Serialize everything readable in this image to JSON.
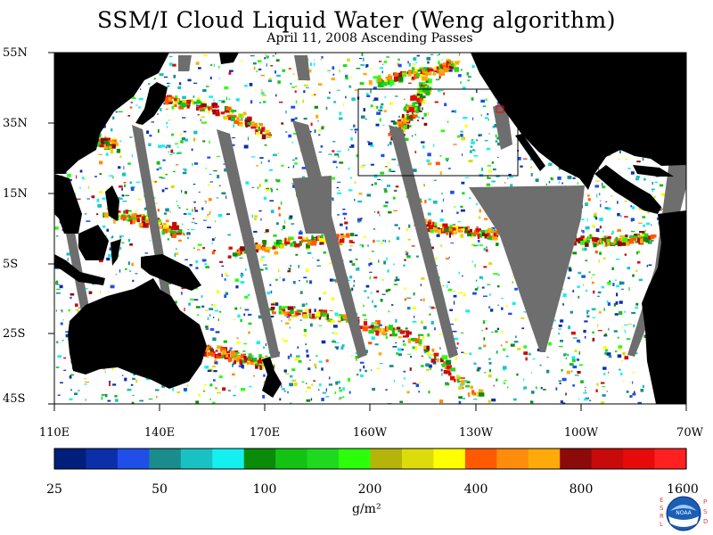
{
  "title": "SSM/I Cloud Liquid Water (Weng algorithm)",
  "subtitle": "April 11, 2008  Ascending Passes",
  "lat_labels": [
    "55N",
    "35N",
    "15N",
    "5S",
    "25S",
    "45S"
  ],
  "lon_labels": [
    "110E",
    "140E",
    "170E",
    "160W",
    "130W",
    "100W",
    "70W"
  ],
  "colorbar": {
    "colors": [
      "#001f7a",
      "#0a2fa8",
      "#1f4fe8",
      "#1a8c8c",
      "#19c2c2",
      "#14f0f0",
      "#0a8c0a",
      "#14c214",
      "#1ed91e",
      "#2cff0a",
      "#b4b40a",
      "#dcdc0a",
      "#ffff00",
      "#ff5a00",
      "#ff8c0a",
      "#ffaa0a",
      "#8c0a0a",
      "#c80a0a",
      "#e60a0a",
      "#ff2020"
    ],
    "tick_labels": [
      "25",
      "50",
      "100",
      "200",
      "400",
      "800",
      "1600"
    ]
  },
  "units": "g/m²",
  "logo": {
    "left_letters": [
      "E",
      "S",
      "R",
      "L"
    ],
    "right_letters": [
      "P",
      "S",
      "D"
    ],
    "emblem_text": "NOAA"
  }
}
